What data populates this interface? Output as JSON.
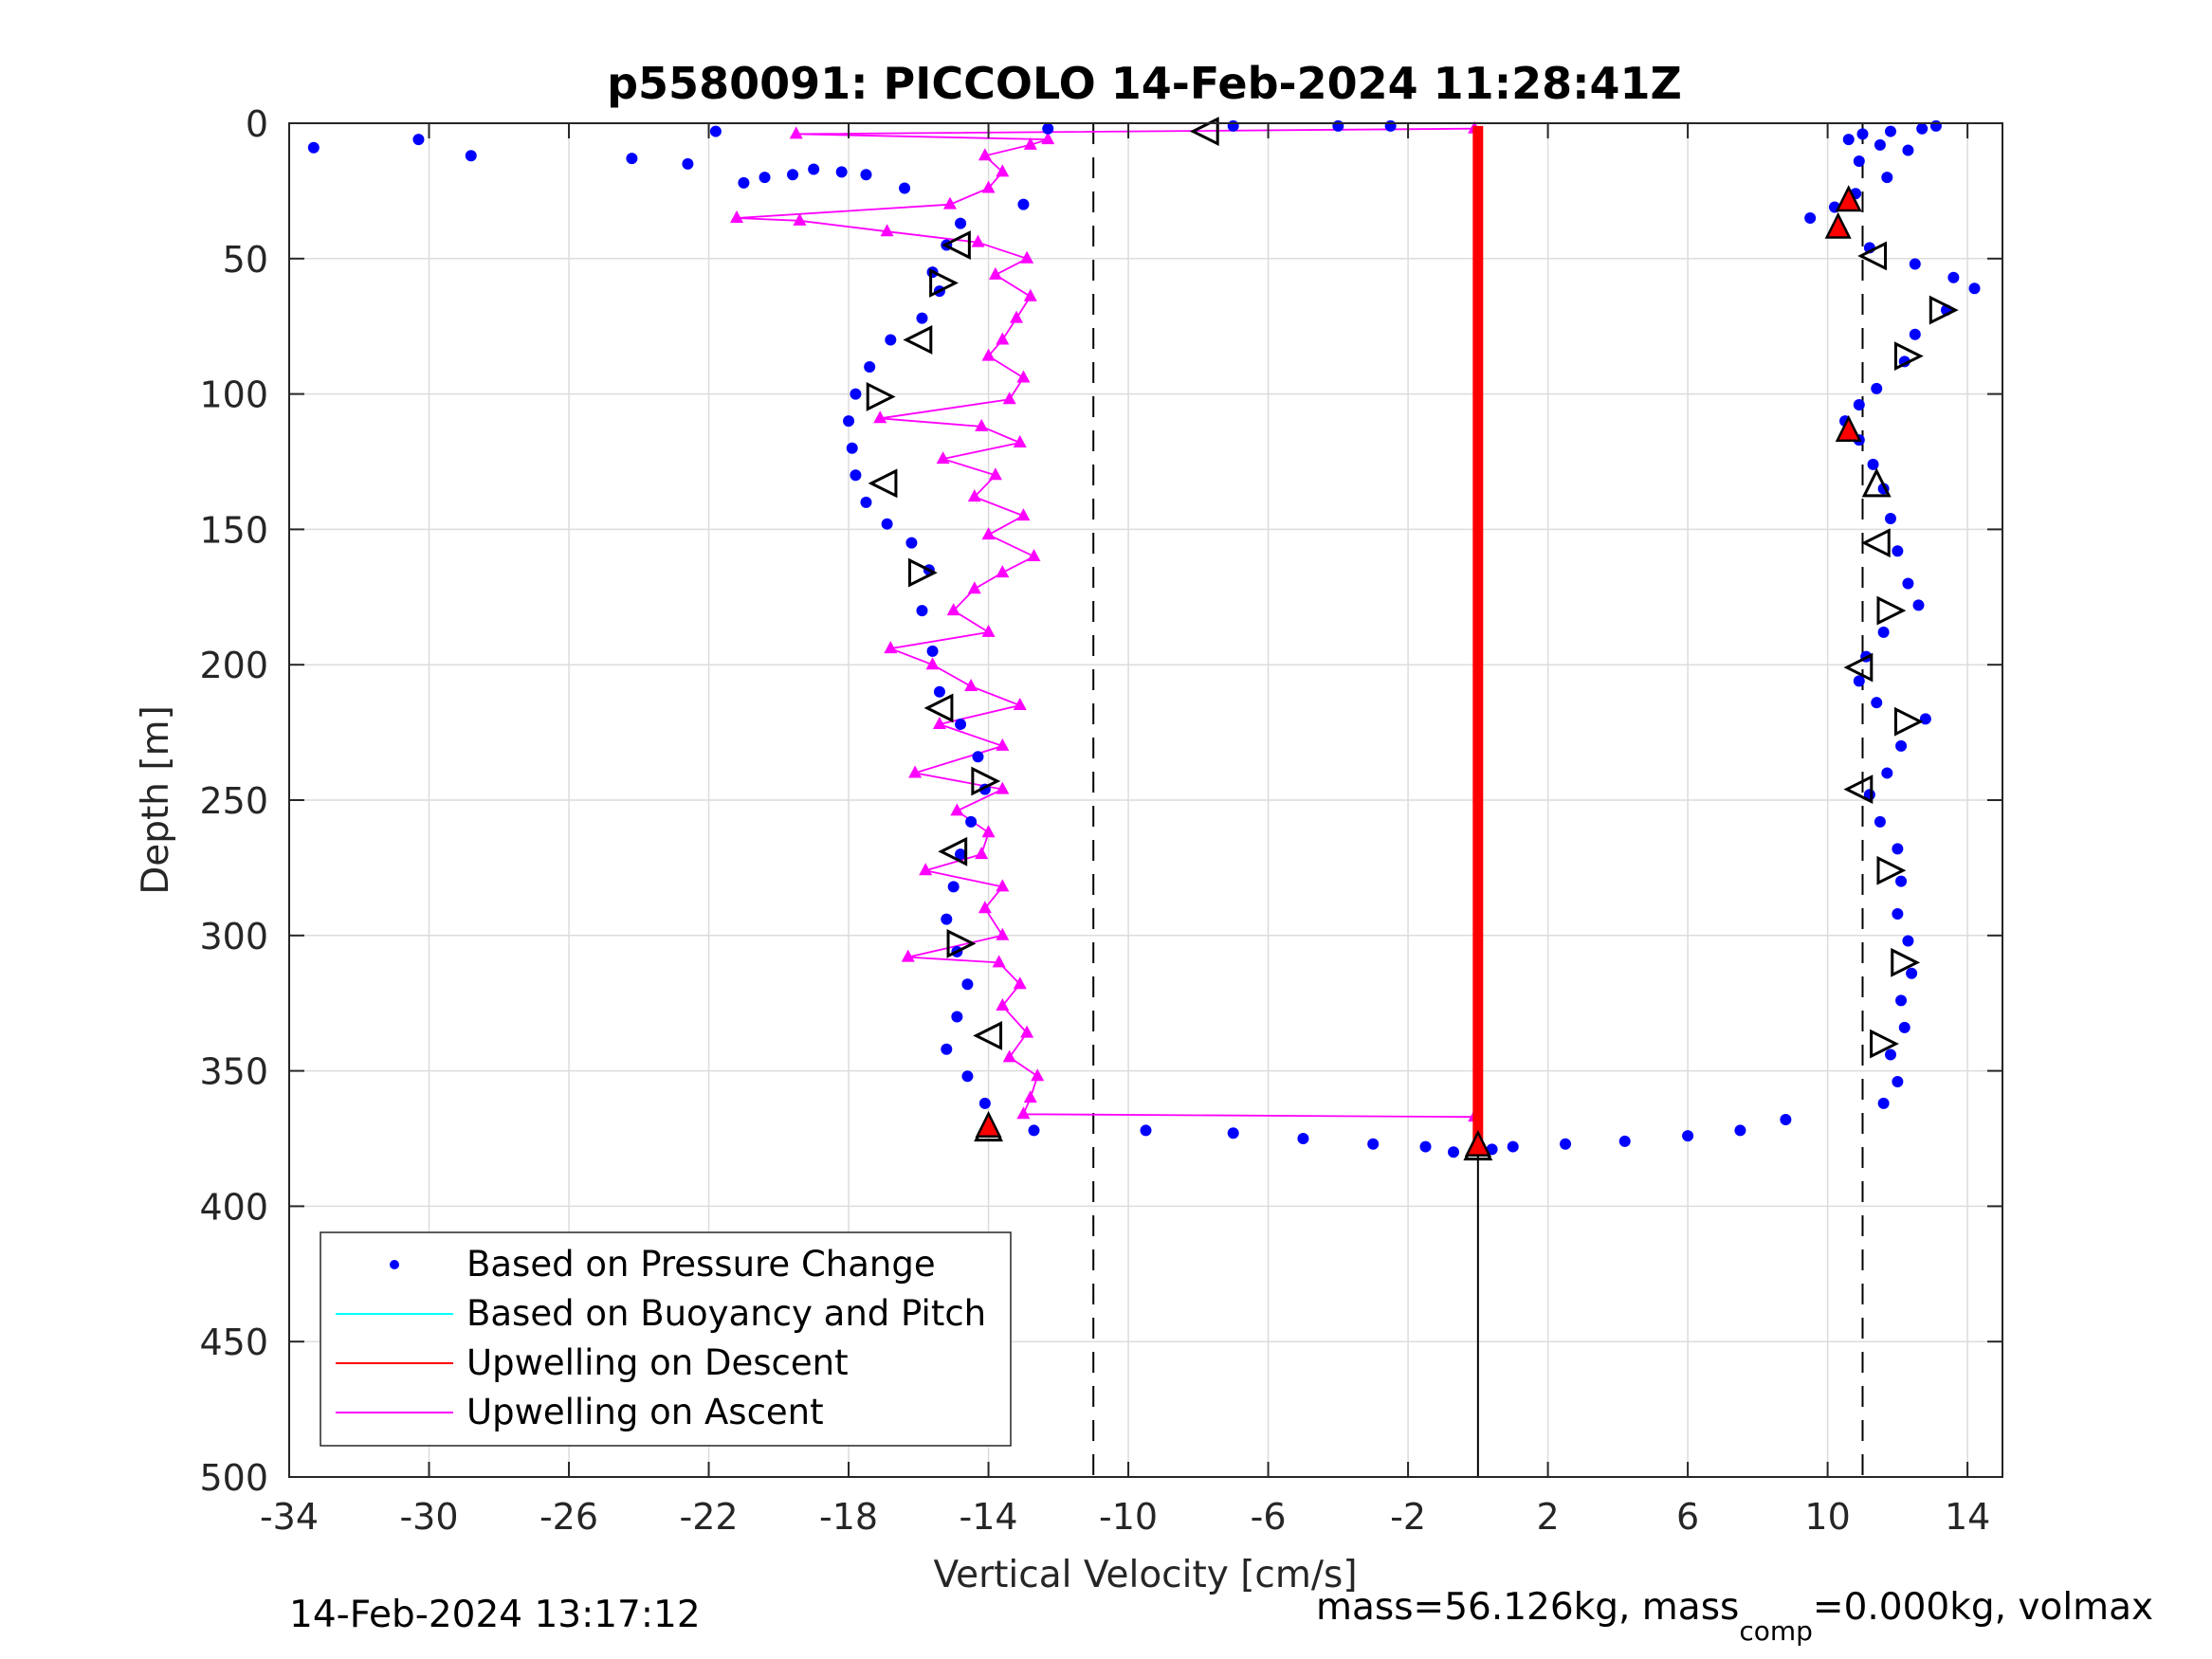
{
  "chart_data": {
    "type": "scatter",
    "title": "p5580091: PICCOLO 14-Feb-2024 11:28:41Z",
    "xlabel": "Vertical Velocity [cm/s]",
    "ylabel": "Depth [m]",
    "xlim": [
      -34,
      15
    ],
    "ylim": [
      0,
      500
    ],
    "y_reversed": true,
    "grid": true,
    "x_ticks": [
      -34,
      -30,
      -26,
      -22,
      -18,
      -14,
      -10,
      -6,
      -2,
      2,
      6,
      10,
      14
    ],
    "y_ticks": [
      0,
      50,
      100,
      150,
      200,
      250,
      300,
      350,
      400,
      450,
      500
    ],
    "x_tick_labels": [
      "-34",
      "-30",
      "-26",
      "-22",
      "-18",
      "-14",
      "-10",
      "-6",
      "-2",
      "2",
      "6",
      "10",
      "14"
    ],
    "y_tick_labels": [
      "0",
      "50",
      "100",
      "150",
      "200",
      "250",
      "300",
      "350",
      "400",
      "450",
      "500"
    ],
    "reference_lines_x": [
      -11,
      11
    ],
    "zero_line_x": 0,
    "legend": {
      "placement": "bottom-left",
      "entries": [
        {
          "label": "Based on Pressure Change",
          "color": "#0000ff",
          "marker": "dot"
        },
        {
          "label": "Based on Buoyancy and Pitch",
          "color": "#00ffff",
          "marker": "line"
        },
        {
          "label": "Upwelling on Descent",
          "color": "#ff0000",
          "marker": "line"
        },
        {
          "label": "Upwelling on Ascent",
          "color": "#ff00ff",
          "marker": "line"
        }
      ]
    },
    "series": [
      {
        "name": "Based on Pressure Change",
        "color": "#0000ff",
        "descent_points": [
          [
            13.1,
            1
          ],
          [
            12.7,
            2
          ],
          [
            11.8,
            3
          ],
          [
            11.0,
            4
          ],
          [
            10.6,
            6
          ],
          [
            11.5,
            8
          ],
          [
            12.3,
            10
          ],
          [
            10.9,
            14
          ],
          [
            11.7,
            20
          ],
          [
            10.8,
            26
          ],
          [
            10.2,
            31
          ],
          [
            9.5,
            35
          ],
          [
            10.4,
            40
          ],
          [
            11.2,
            46
          ],
          [
            12.5,
            52
          ],
          [
            13.6,
            57
          ],
          [
            14.2,
            61
          ],
          [
            13.4,
            69
          ],
          [
            12.5,
            78
          ],
          [
            12.2,
            88
          ],
          [
            11.4,
            98
          ],
          [
            10.9,
            104
          ],
          [
            10.5,
            110
          ],
          [
            10.9,
            117
          ],
          [
            11.3,
            126
          ],
          [
            11.6,
            135
          ],
          [
            11.8,
            146
          ],
          [
            12.0,
            158
          ],
          [
            12.3,
            170
          ],
          [
            12.6,
            178
          ],
          [
            11.6,
            188
          ],
          [
            11.1,
            197
          ],
          [
            10.9,
            206
          ],
          [
            11.4,
            214
          ],
          [
            12.8,
            220
          ],
          [
            12.1,
            230
          ],
          [
            11.7,
            240
          ],
          [
            11.2,
            248
          ],
          [
            11.5,
            258
          ],
          [
            12.0,
            268
          ],
          [
            12.1,
            280
          ],
          [
            12.0,
            292
          ],
          [
            12.3,
            302
          ],
          [
            12.4,
            314
          ],
          [
            12.1,
            324
          ],
          [
            12.2,
            334
          ],
          [
            11.8,
            344
          ],
          [
            12.0,
            354
          ],
          [
            11.6,
            362
          ],
          [
            8.8,
            368
          ],
          [
            7.5,
            372
          ],
          [
            6.0,
            374
          ],
          [
            4.2,
            376
          ],
          [
            2.5,
            377
          ],
          [
            1.0,
            378
          ],
          [
            0.4,
            379
          ]
        ],
        "ascent_points": [
          [
            -33.3,
            9
          ],
          [
            -30.3,
            6
          ],
          [
            -28.8,
            12
          ],
          [
            -24.2,
            13
          ],
          [
            -22.6,
            15
          ],
          [
            -21.8,
            3
          ],
          [
            -21.0,
            22
          ],
          [
            -20.4,
            20
          ],
          [
            -19.6,
            19
          ],
          [
            -19.0,
            17
          ],
          [
            -18.2,
            18
          ],
          [
            -17.5,
            19
          ],
          [
            -16.4,
            24
          ],
          [
            -12.3,
            2
          ],
          [
            -13.0,
            30
          ],
          [
            -14.8,
            37
          ],
          [
            -15.2,
            45
          ],
          [
            -15.6,
            55
          ],
          [
            -15.4,
            62
          ],
          [
            -15.9,
            72
          ],
          [
            -16.8,
            80
          ],
          [
            -17.4,
            90
          ],
          [
            -17.8,
            100
          ],
          [
            -18.0,
            110
          ],
          [
            -17.9,
            120
          ],
          [
            -17.8,
            130
          ],
          [
            -17.5,
            140
          ],
          [
            -16.9,
            148
          ],
          [
            -16.2,
            155
          ],
          [
            -15.7,
            165
          ],
          [
            -15.9,
            180
          ],
          [
            -15.6,
            195
          ],
          [
            -15.4,
            210
          ],
          [
            -14.8,
            222
          ],
          [
            -14.3,
            234
          ],
          [
            -14.1,
            246
          ],
          [
            -14.5,
            258
          ],
          [
            -14.8,
            270
          ],
          [
            -15.0,
            282
          ],
          [
            -15.2,
            294
          ],
          [
            -14.9,
            306
          ],
          [
            -14.6,
            318
          ],
          [
            -14.9,
            330
          ],
          [
            -15.2,
            342
          ],
          [
            -14.6,
            352
          ],
          [
            -14.1,
            362
          ],
          [
            -14.0,
            370
          ],
          [
            -12.7,
            372
          ],
          [
            -9.5,
            372
          ],
          [
            -7.0,
            373
          ],
          [
            -5.0,
            375
          ],
          [
            -3.0,
            377
          ],
          [
            -1.5,
            378
          ],
          [
            -0.7,
            380
          ],
          [
            -7.0,
            1
          ],
          [
            -4.0,
            1
          ],
          [
            -2.5,
            1
          ]
        ]
      },
      {
        "name": "Upwelling on Ascent",
        "color": "#ff00ff",
        "points": [
          [
            -0.1,
            367
          ],
          [
            -13.0,
            366
          ],
          [
            -12.8,
            360
          ],
          [
            -12.6,
            352
          ],
          [
            -13.4,
            345
          ],
          [
            -12.9,
            336
          ],
          [
            -13.6,
            326
          ],
          [
            -13.1,
            318
          ],
          [
            -13.7,
            310
          ],
          [
            -16.3,
            308
          ],
          [
            -13.6,
            300
          ],
          [
            -14.1,
            290
          ],
          [
            -13.6,
            282
          ],
          [
            -15.8,
            276
          ],
          [
            -14.2,
            270
          ],
          [
            -14.0,
            262
          ],
          [
            -14.9,
            254
          ],
          [
            -13.6,
            246
          ],
          [
            -16.1,
            240
          ],
          [
            -13.6,
            230
          ],
          [
            -15.4,
            222
          ],
          [
            -13.1,
            215
          ],
          [
            -14.5,
            208
          ],
          [
            -15.6,
            200
          ],
          [
            -16.8,
            194
          ],
          [
            -14.0,
            188
          ],
          [
            -15.0,
            180
          ],
          [
            -14.4,
            172
          ],
          [
            -13.6,
            166
          ],
          [
            -12.7,
            160
          ],
          [
            -14.0,
            152
          ],
          [
            -13.0,
            145
          ],
          [
            -14.4,
            138
          ],
          [
            -13.8,
            130
          ],
          [
            -15.3,
            124
          ],
          [
            -13.1,
            118
          ],
          [
            -14.2,
            112
          ],
          [
            -17.1,
            109
          ],
          [
            -13.4,
            102
          ],
          [
            -13.0,
            94
          ],
          [
            -14.0,
            86
          ],
          [
            -13.6,
            80
          ],
          [
            -13.2,
            72
          ],
          [
            -12.8,
            64
          ],
          [
            -13.8,
            56
          ],
          [
            -12.9,
            50
          ],
          [
            -14.3,
            44
          ],
          [
            -16.9,
            40
          ],
          [
            -19.4,
            36
          ],
          [
            -21.2,
            35
          ],
          [
            -15.1,
            30
          ],
          [
            -14.0,
            24
          ],
          [
            -13.6,
            18
          ],
          [
            -14.1,
            12
          ],
          [
            -12.8,
            8
          ],
          [
            -12.3,
            6
          ],
          [
            -19.5,
            4
          ],
          [
            -0.1,
            2
          ]
        ]
      },
      {
        "name": "Upwelling on Descent",
        "color": "#ff0000",
        "points": [
          [
            0,
            1
          ],
          [
            0,
            100
          ],
          [
            0,
            200
          ],
          [
            0,
            300
          ],
          [
            0,
            376
          ]
        ]
      }
    ],
    "markers": {
      "open_triangles": [
        [
          -7.8,
          3,
          "left"
        ],
        [
          -14.9,
          45,
          "left"
        ],
        [
          -15.3,
          59,
          "right"
        ],
        [
          -16.0,
          80,
          "left"
        ],
        [
          -17.1,
          101,
          "right"
        ],
        [
          -17.0,
          133,
          "left"
        ],
        [
          -15.9,
          166,
          "right"
        ],
        [
          -15.4,
          216,
          "left"
        ],
        [
          -14.1,
          243,
          "right"
        ],
        [
          -15.0,
          269,
          "left"
        ],
        [
          -14.8,
          303,
          "right"
        ],
        [
          -14.0,
          337,
          "left"
        ],
        [
          -14.0,
          371,
          "up"
        ],
        [
          11.3,
          49,
          "left"
        ],
        [
          13.3,
          69,
          "right"
        ],
        [
          12.3,
          86,
          "right"
        ],
        [
          11.4,
          133,
          "up"
        ],
        [
          11.4,
          155,
          "left"
        ],
        [
          11.8,
          180,
          "right"
        ],
        [
          10.9,
          201,
          "left"
        ],
        [
          12.3,
          221,
          "right"
        ],
        [
          10.9,
          246,
          "left"
        ],
        [
          11.8,
          276,
          "right"
        ],
        [
          12.2,
          310,
          "right"
        ],
        [
          11.6,
          340,
          "right"
        ],
        [
          0,
          378,
          "up"
        ]
      ],
      "red_triangles": [
        [
          10.6,
          28
        ],
        [
          10.3,
          38
        ],
        [
          10.6,
          113
        ],
        [
          -14.0,
          370
        ],
        [
          0,
          377
        ]
      ]
    }
  },
  "footer": {
    "timestamp": "14-Feb-2024 13:17:12",
    "mass_text": "mass=56.126kg, mass",
    "mass_sub": "comp",
    "mass_rest": "=0.000kg, volmax"
  }
}
